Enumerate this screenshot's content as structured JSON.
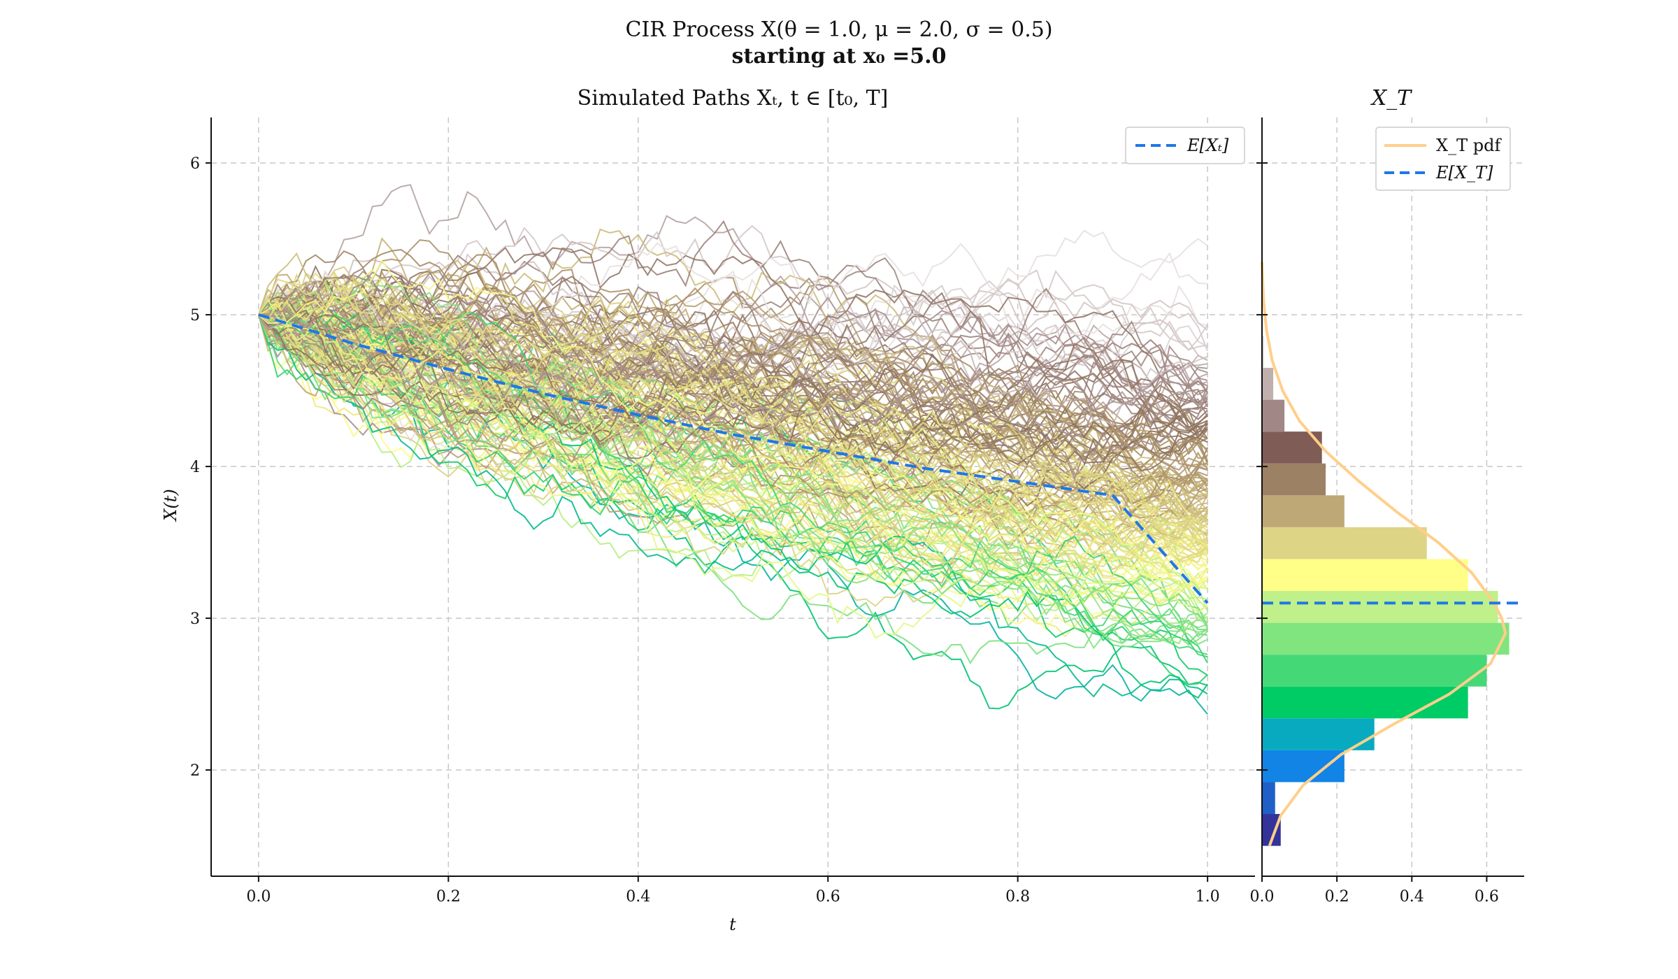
{
  "figure": {
    "title_line1": "CIR Process X(θ = 1.0, μ = 2.0, σ = 0.5)",
    "title_line2": "starting at x₀ =5.0"
  },
  "chart_data": [
    {
      "type": "line",
      "title": "Simulated Paths Xₜ, t ∈ [t₀, T]",
      "xlabel": "t",
      "ylabel": "X(t)",
      "xlim": [
        -0.05,
        1.05
      ],
      "ylim": [
        1.3,
        6.3
      ],
      "xticks": [
        0.0,
        0.2,
        0.4,
        0.6,
        0.8,
        1.0
      ],
      "xtick_labels": [
        "0.0",
        "0.2",
        "0.4",
        "0.6",
        "0.8",
        "1.0"
      ],
      "yticks": [
        2,
        3,
        4,
        5,
        6
      ],
      "ytick_labels": [
        "2",
        "3",
        "4",
        "5",
        "6"
      ],
      "grid": true,
      "legend_placement": "upper-right",
      "legend": [
        {
          "label": "E[Xₜ]",
          "style": "dashed",
          "color": "#1f77e8"
        }
      ],
      "x0": 5.0,
      "theta": 1.0,
      "mu": 2.0,
      "sigma": 0.5,
      "t_range": [
        0.0,
        1.0
      ],
      "steps": 100,
      "n_paths_approx": 300,
      "expectation_series": {
        "name": "E[Xₜ]",
        "x": [
          0.0,
          0.1,
          0.2,
          0.3,
          0.4,
          0.5,
          0.6,
          0.7,
          0.8,
          0.9,
          1.0
        ],
        "values": [
          5.0,
          4.81,
          4.64,
          4.48,
          4.34,
          4.21,
          4.1,
          3.99,
          3.9,
          3.81,
          3.1
        ]
      },
      "path_colormap": "terrain",
      "colors": [
        "#2e2e8a",
        "#1a6fd6",
        "#0aa6c2",
        "#00c964",
        "#7fe07f",
        "#ffff88",
        "#d9d080",
        "#b9a072",
        "#8a6e58",
        "#a89090",
        "#e8e0e0"
      ]
    },
    {
      "type": "bar",
      "orientation": "horizontal",
      "title": "X_T",
      "xlim": [
        0.0,
        0.7
      ],
      "xticks": [
        0.0,
        0.2,
        0.4,
        0.6
      ],
      "xtick_labels": [
        "0.0",
        "0.2",
        "0.4",
        "0.6"
      ],
      "grid": true,
      "legend_placement": "upper-right",
      "legend": [
        {
          "label": "X_T pdf",
          "style": "solid",
          "color": "#ffcf8a"
        },
        {
          "label": "E[X_T]",
          "style": "dashed",
          "color": "#1f77e8"
        }
      ],
      "bins": [
        {
          "low": 1.5,
          "high": 1.71,
          "density": 0.05,
          "color": "#333399"
        },
        {
          "low": 1.71,
          "high": 1.92,
          "density": 0.035,
          "color": "#1f5fc8"
        },
        {
          "low": 1.92,
          "high": 2.13,
          "density": 0.22,
          "color": "#1184e6"
        },
        {
          "low": 2.13,
          "high": 2.34,
          "density": 0.3,
          "color": "#08aac0"
        },
        {
          "low": 2.34,
          "high": 2.55,
          "density": 0.55,
          "color": "#00cc66"
        },
        {
          "low": 2.55,
          "high": 2.76,
          "density": 0.6,
          "color": "#44d877"
        },
        {
          "low": 2.76,
          "high": 2.97,
          "density": 0.66,
          "color": "#80e47f"
        },
        {
          "low": 2.97,
          "high": 3.18,
          "density": 0.63,
          "color": "#bff089"
        },
        {
          "low": 3.18,
          "high": 3.39,
          "density": 0.55,
          "color": "#ffff88"
        },
        {
          "low": 3.39,
          "high": 3.6,
          "density": 0.44,
          "color": "#ddd486"
        },
        {
          "low": 3.6,
          "high": 3.81,
          "density": 0.22,
          "color": "#bea876"
        },
        {
          "low": 3.81,
          "high": 4.02,
          "density": 0.17,
          "color": "#9d8164"
        },
        {
          "low": 4.02,
          "high": 4.23,
          "density": 0.16,
          "color": "#7f5c55"
        },
        {
          "low": 4.23,
          "high": 4.44,
          "density": 0.06,
          "color": "#a18886"
        },
        {
          "low": 4.44,
          "high": 4.65,
          "density": 0.03,
          "color": "#c0afad"
        },
        {
          "low": 4.65,
          "high": 4.86,
          "density": 0.005,
          "color": "#e0d8d8"
        }
      ],
      "pdf": {
        "name": "X_T pdf",
        "y": [
          1.5,
          1.7,
          1.9,
          2.1,
          2.3,
          2.5,
          2.7,
          2.9,
          3.0,
          3.1,
          3.3,
          3.5,
          3.7,
          3.9,
          4.1,
          4.3,
          4.5,
          4.7,
          4.9,
          5.1,
          5.35
        ],
        "density": [
          0.02,
          0.05,
          0.11,
          0.21,
          0.35,
          0.5,
          0.61,
          0.65,
          0.64,
          0.62,
          0.56,
          0.47,
          0.36,
          0.26,
          0.17,
          0.1,
          0.055,
          0.027,
          0.012,
          0.004,
          0.0
        ]
      },
      "expectation": {
        "name": "E[X_T]",
        "value": 3.1
      }
    }
  ]
}
